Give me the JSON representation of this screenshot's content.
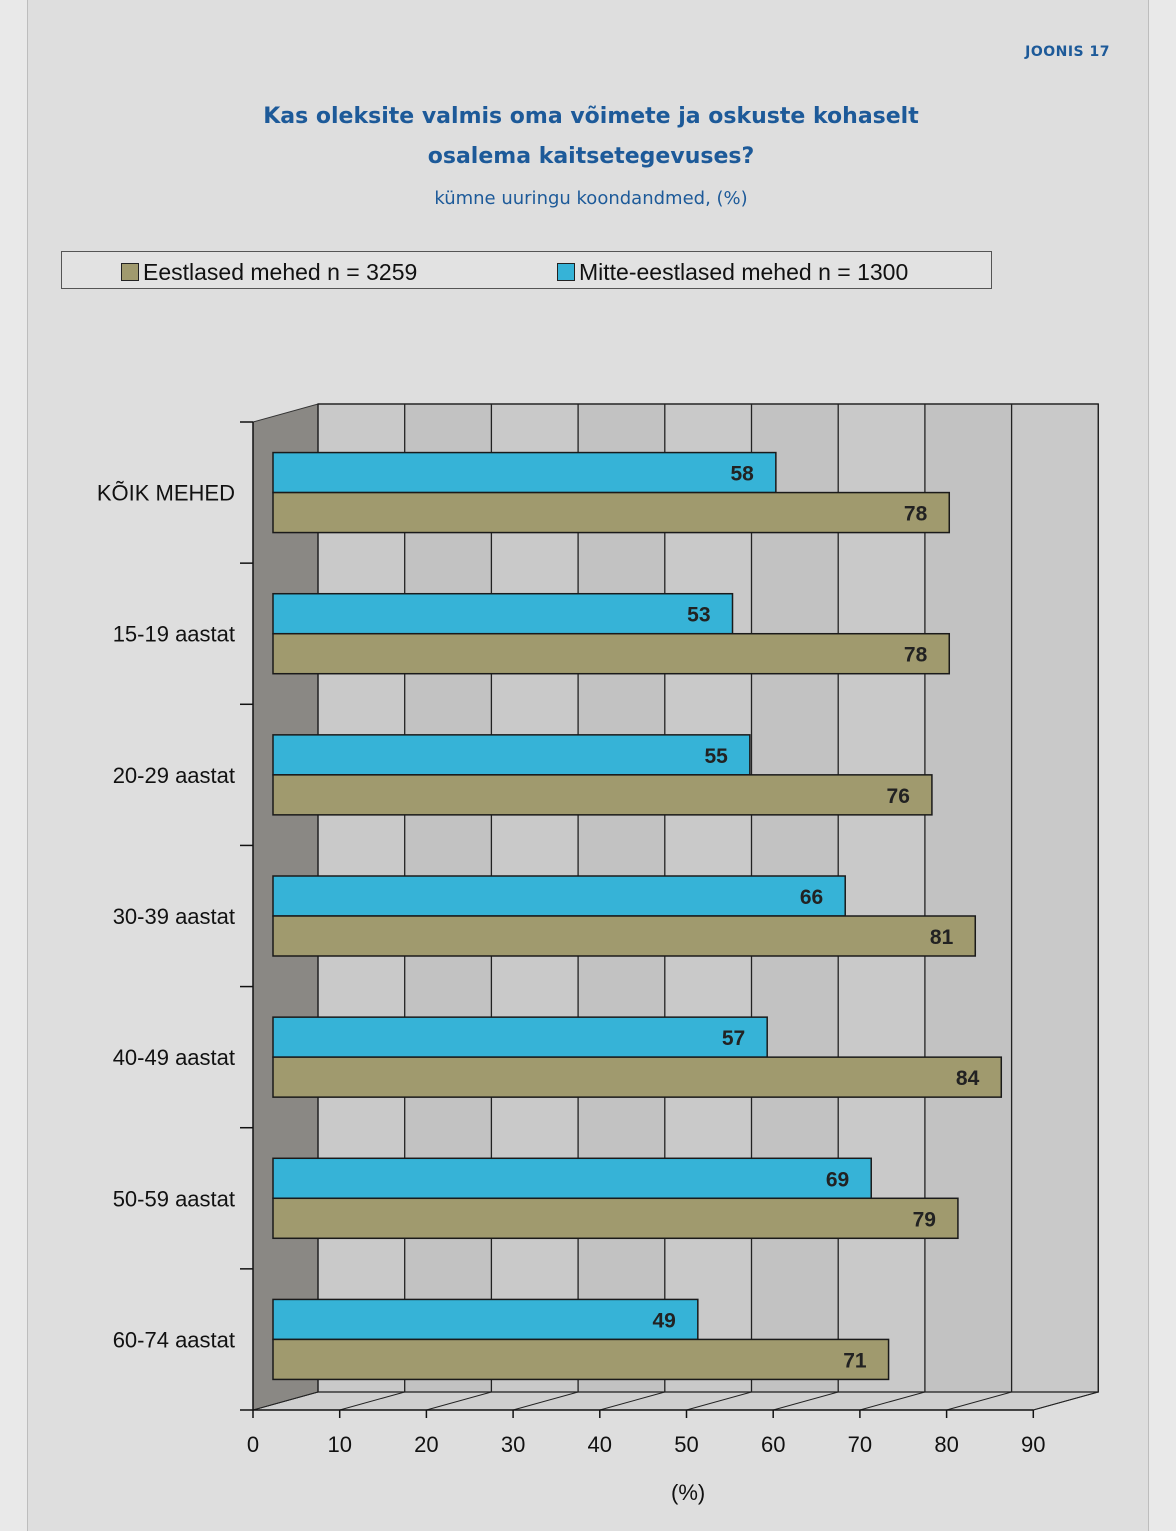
{
  "figure_label": "JOONIS 17",
  "title_lines": [
    "Kas oleksite valmis oma võimete ja oskuste kohaselt",
    "osalema kaitsetegevuses?"
  ],
  "subtitle": "kümne uuringu koondandmed, (%)",
  "legend": [
    {
      "label": "Eestlased mehed n = 3259",
      "color": "#a09a6e"
    },
    {
      "label": "Mitte-eestlased mehed n = 1300",
      "color": "#36b3d7"
    }
  ],
  "chart_data": {
    "type": "bar",
    "orientation": "horizontal",
    "style": "3d",
    "categories": [
      "KÕIK MEHED",
      "15-19 aastat",
      "20-29 aastat",
      "30-39 aastat",
      "40-49 aastat",
      "50-59 aastat",
      "60-74 aastat"
    ],
    "series": [
      {
        "name": "Mitte-eestlased mehed n = 1300",
        "color": "#36b3d7",
        "values": [
          58,
          53,
          55,
          66,
          57,
          69,
          49
        ]
      },
      {
        "name": "Eestlased mehed n = 3259",
        "color": "#a09a6e",
        "values": [
          78,
          78,
          76,
          81,
          84,
          79,
          71
        ]
      }
    ],
    "xlabel": "(%)",
    "xlim": [
      0,
      90
    ],
    "xticks": [
      0,
      10,
      20,
      30,
      40,
      50,
      60,
      70,
      80,
      90
    ],
    "grid": true,
    "legend_position": "top",
    "data_labels": true
  }
}
